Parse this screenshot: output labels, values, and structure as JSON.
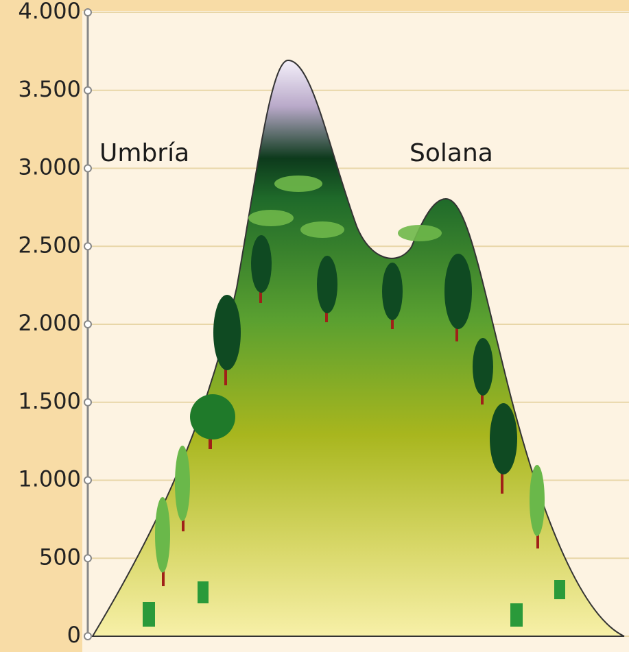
{
  "axis": {
    "ticks": [
      {
        "value": 0,
        "label": "0"
      },
      {
        "value": 500,
        "label": "500"
      },
      {
        "value": 1000,
        "label": "1.000"
      },
      {
        "value": 1500,
        "label": "1.500"
      },
      {
        "value": 2000,
        "label": "2.000"
      },
      {
        "value": 2500,
        "label": "2.500"
      },
      {
        "value": 3000,
        "label": "3.000"
      },
      {
        "value": 3500,
        "label": "3.500"
      },
      {
        "value": 4000,
        "label": "4.000"
      }
    ]
  },
  "labels": {
    "left": "Umbría",
    "right": "Solana"
  }
}
